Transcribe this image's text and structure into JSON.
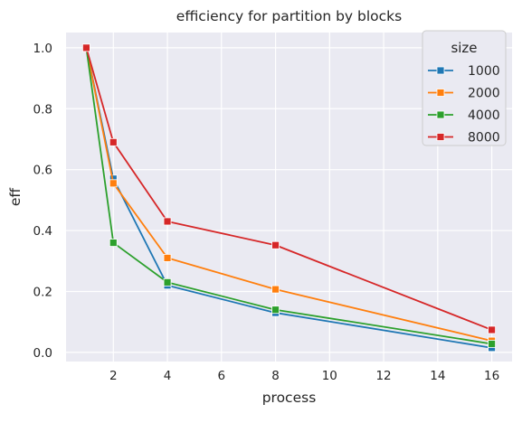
{
  "chart_data": {
    "type": "line",
    "title": "efficiency for partition by blocks",
    "xlabel": "process",
    "ylabel": "eff",
    "x": [
      1,
      2,
      4,
      8,
      16
    ],
    "xlim": [
      0.25,
      16.75
    ],
    "ylim": [
      -0.03,
      1.05
    ],
    "xticks": [
      2,
      4,
      6,
      8,
      10,
      12,
      14,
      16
    ],
    "yticks": [
      0.0,
      0.2,
      0.4,
      0.6,
      0.8,
      1.0
    ],
    "ytick_labels": [
      "0.0",
      "0.2",
      "0.4",
      "0.6",
      "0.8",
      "1.0"
    ],
    "grid": true,
    "marker": "square",
    "legend": {
      "title": "size",
      "placement": "top-right"
    },
    "series": [
      {
        "name": "1000",
        "color": "#1f77b4",
        "values": [
          1.0,
          0.57,
          0.22,
          0.13,
          0.015
        ]
      },
      {
        "name": "2000",
        "color": "#ff7f0e",
        "values": [
          1.0,
          0.555,
          0.31,
          0.207,
          0.038
        ]
      },
      {
        "name": "4000",
        "color": "#2ca02c",
        "values": [
          1.0,
          0.36,
          0.23,
          0.14,
          0.028
        ]
      },
      {
        "name": "8000",
        "color": "#d62728",
        "values": [
          1.0,
          0.69,
          0.43,
          0.352,
          0.074
        ]
      }
    ]
  }
}
